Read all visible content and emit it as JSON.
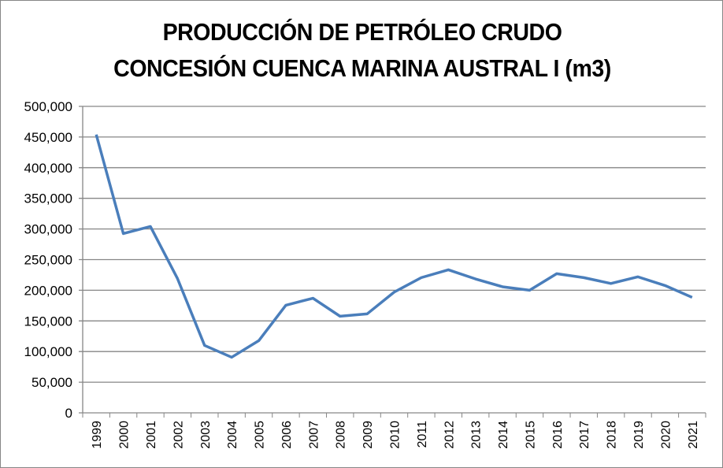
{
  "chart_data": {
    "type": "line",
    "title": [
      "PRODUCCIÓN DE PETRÓLEO CRUDO",
      "CONCESIÓN CUENCA MARINA AUSTRAL I (m3)"
    ],
    "xlabel": "",
    "ylabel": "",
    "ylim": [
      0,
      500000
    ],
    "yticks": [
      0,
      50000,
      100000,
      150000,
      200000,
      250000,
      300000,
      350000,
      400000,
      450000,
      500000
    ],
    "ytick_labels": [
      "0",
      "50,000",
      "100,000",
      "150,000",
      "200,000",
      "250,000",
      "300,000",
      "350,000",
      "400,000",
      "450,000",
      "500,000"
    ],
    "grid": true,
    "legend": "none",
    "categories": [
      "1999",
      "2000",
      "2001",
      "2002",
      "2003",
      "2004",
      "2005",
      "2006",
      "2007",
      "2008",
      "2009",
      "2010",
      "2011",
      "2012",
      "2013",
      "2014",
      "2015",
      "2016",
      "2017",
      "2018",
      "2019",
      "2020",
      "2021"
    ],
    "series": [
      {
        "name": "Producción",
        "color": "#4a7ebb",
        "values": [
          454000,
          292500,
          304000,
          219000,
          110000,
          90700,
          117700,
          175600,
          187000,
          157600,
          161400,
          197000,
          220600,
          233400,
          218500,
          205700,
          200000,
          227000,
          220600,
          211000,
          221900,
          207700,
          188400
        ]
      }
    ]
  }
}
